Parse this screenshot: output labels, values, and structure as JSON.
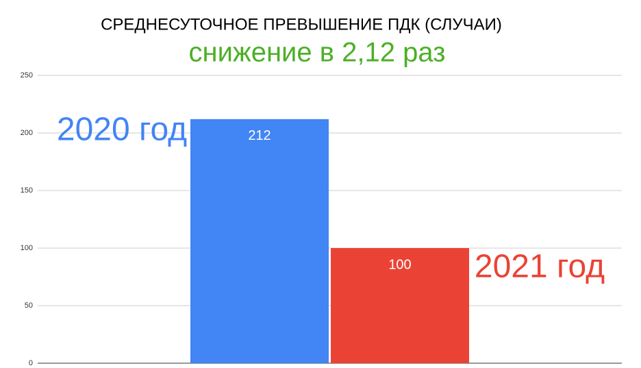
{
  "chart_data": {
    "type": "bar",
    "title": "СРЕДНЕСУТОЧНОЕ ПРЕВЫШЕНИЕ ПДК (СЛУЧАИ)",
    "subtitle": "снижение в 2,12 раз",
    "subtitle_color": "#4caf27",
    "categories": [
      "2020 год",
      "2021 год"
    ],
    "values": [
      212,
      100
    ],
    "colors": [
      "#4285f4",
      "#ea4335"
    ],
    "ylim": [
      0,
      250
    ],
    "yticks": [
      0,
      50,
      100,
      150,
      200,
      250
    ],
    "grid": true
  }
}
